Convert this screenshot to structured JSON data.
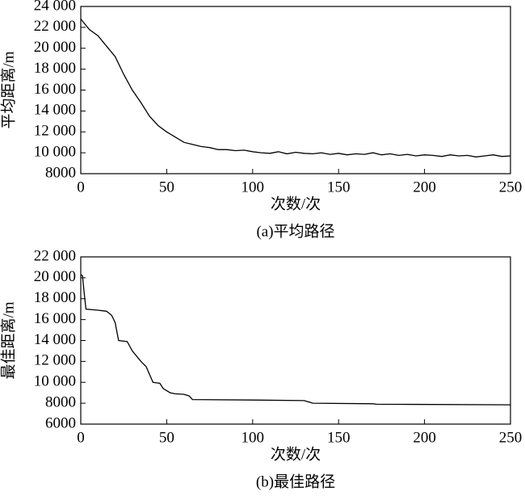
{
  "chart_data": [
    {
      "type": "line",
      "xlabel": "次数/次",
      "ylabel": "平均距离/m",
      "caption": "(a)平均路径",
      "x": [
        0,
        5,
        10,
        15,
        20,
        25,
        30,
        35,
        40,
        45,
        50,
        55,
        60,
        65,
        70,
        75,
        80,
        85,
        90,
        95,
        100,
        105,
        110,
        115,
        120,
        125,
        130,
        135,
        140,
        145,
        150,
        155,
        160,
        165,
        170,
        175,
        180,
        185,
        190,
        195,
        200,
        205,
        210,
        215,
        220,
        225,
        230,
        235,
        240,
        245,
        250
      ],
      "values": [
        22800,
        21800,
        21200,
        20200,
        19200,
        17500,
        16000,
        14800,
        13500,
        12600,
        12000,
        11500,
        11000,
        10800,
        10600,
        10500,
        10300,
        10300,
        10200,
        10250,
        10100,
        10000,
        9950,
        10100,
        9900,
        10050,
        9950,
        9900,
        10000,
        9850,
        9950,
        9800,
        9900,
        9850,
        10000,
        9800,
        9900,
        9750,
        9850,
        9700,
        9800,
        9750,
        9650,
        9800,
        9700,
        9750,
        9600,
        9700,
        9800,
        9650,
        9700
      ],
      "color": "#000000",
      "xlim": [
        0,
        250
      ],
      "xticks": [
        0,
        50,
        100,
        150,
        200,
        250
      ],
      "ylim": [
        8000,
        24000
      ],
      "yticks": [
        8000,
        {
          "value": 10000,
          "label": "10 000"
        },
        {
          "value": 12000,
          "label": "12 000"
        },
        {
          "value": 14000,
          "label": "14 000"
        },
        {
          "value": 16000,
          "label": "16 000"
        },
        {
          "value": 18000,
          "label": "18 000"
        },
        {
          "value": 20000,
          "label": "20 000"
        },
        {
          "value": 22000,
          "label": "22 000"
        },
        {
          "value": 24000,
          "label": "24 000"
        }
      ]
    },
    {
      "type": "line",
      "xlabel": "次数/次",
      "ylabel": "最佳距离/m",
      "caption": "(b)最佳路径",
      "x": [
        0,
        1,
        2,
        3,
        10,
        15,
        18,
        20,
        22,
        27,
        30,
        35,
        38,
        42,
        46,
        48,
        52,
        55,
        60,
        63,
        65,
        100,
        130,
        135,
        170,
        172,
        250
      ],
      "values": [
        20300,
        20200,
        18500,
        17000,
        16900,
        16800,
        16400,
        15700,
        14000,
        13900,
        13000,
        12000,
        11500,
        10000,
        9900,
        9400,
        9000,
        8900,
        8850,
        8700,
        8350,
        8300,
        8250,
        8000,
        7950,
        7900,
        7850
      ],
      "color": "#000000",
      "xlim": [
        0,
        250
      ],
      "xticks": [
        0,
        50,
        100,
        150,
        200,
        250
      ],
      "ylim": [
        6000,
        22000
      ],
      "yticks": [
        6000,
        8000,
        {
          "value": 10000,
          "label": "10 000"
        },
        {
          "value": 12000,
          "label": "12 000"
        },
        {
          "value": 14000,
          "label": "14 000"
        },
        {
          "value": 16000,
          "label": "16 000"
        },
        {
          "value": 18000,
          "label": "18 000"
        },
        {
          "value": 20000,
          "label": "20 000"
        },
        {
          "value": 22000,
          "label": "22 000"
        }
      ]
    }
  ]
}
